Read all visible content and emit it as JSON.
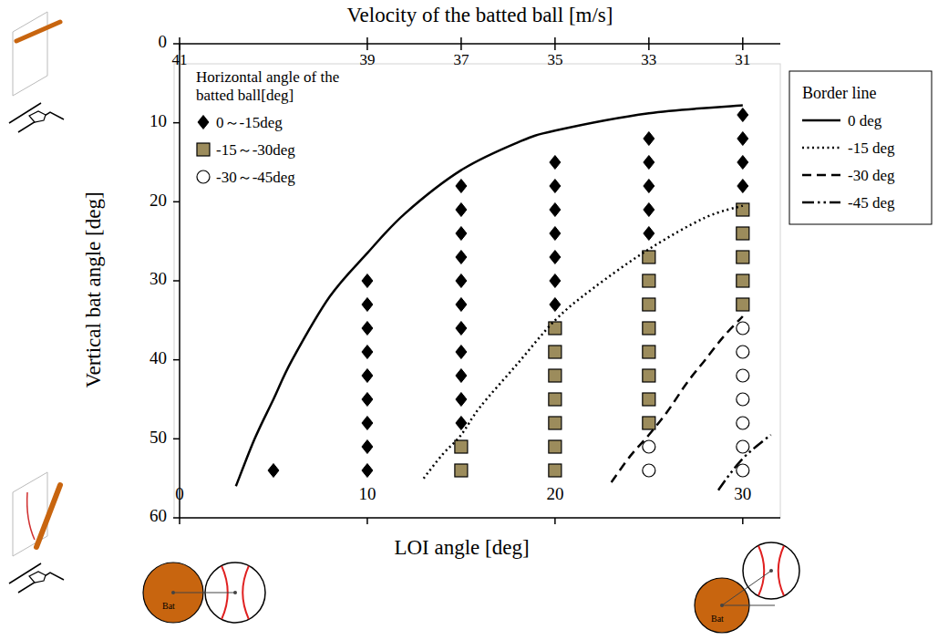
{
  "chart_data": {
    "type": "scatter",
    "x_label": "LOI angle [deg]",
    "x2_label": "Velocity of the batted ball [m/s]",
    "y_label": "Vertical bat angle [deg]",
    "xlim": [
      0,
      32
    ],
    "xticks": [
      0,
      10,
      20,
      30
    ],
    "ylim": [
      60,
      0
    ],
    "yticks": [
      0,
      10,
      20,
      30,
      40,
      50,
      60
    ],
    "x2ticks": [
      41,
      39,
      37,
      35,
      33,
      31
    ],
    "x2ticks_at_x": [
      0,
      10,
      15,
      20,
      25,
      30
    ],
    "grid": false,
    "legend": "upper-left",
    "legend_title": "Horizontal angle of the batted ball[deg]",
    "line_legend_title": "Border line",
    "bat_label": "Bat",
    "series": [
      {
        "name": "0～-15deg",
        "type": "scatter",
        "marker": "diamond",
        "color": "#000000",
        "x": [
          5,
          10,
          10,
          10,
          10,
          10,
          10,
          10,
          10,
          10,
          15,
          15,
          15,
          15,
          15,
          15,
          15,
          15,
          15,
          15,
          15,
          20,
          20,
          20,
          20,
          20,
          20,
          20,
          25,
          25,
          25,
          25,
          25,
          30,
          30,
          30,
          30
        ],
        "values": [
          54,
          30,
          33,
          36,
          39,
          42,
          45,
          48,
          51,
          54,
          18,
          21,
          24,
          27,
          30,
          33,
          36,
          39,
          42,
          45,
          48,
          15,
          18,
          21,
          24,
          27,
          30,
          33,
          12,
          15,
          18,
          21,
          24,
          9,
          12,
          15,
          18
        ]
      },
      {
        "name": "-15～-30deg",
        "type": "scatter",
        "marker": "square",
        "color": "#9c8c5c",
        "x": [
          15,
          15,
          20,
          20,
          20,
          20,
          20,
          20,
          20,
          25,
          25,
          25,
          25,
          25,
          25,
          25,
          25,
          30,
          30,
          30,
          30,
          30
        ],
        "values": [
          51,
          54,
          36,
          39,
          42,
          45,
          48,
          51,
          54,
          27,
          30,
          33,
          36,
          39,
          42,
          45,
          48,
          21,
          24,
          27,
          30,
          33
        ]
      },
      {
        "name": "-30～-45deg",
        "type": "scatter",
        "marker": "circle",
        "color": "#ffffff",
        "x": [
          25,
          25,
          30,
          30,
          30,
          30,
          30,
          30,
          30
        ],
        "values": [
          51,
          54,
          36,
          39,
          42,
          45,
          48,
          51,
          54
        ]
      },
      {
        "name": "0 deg",
        "type": "line",
        "line_style": "solid",
        "color": "#000000",
        "x": [
          3,
          4,
          5,
          6,
          8,
          10,
          12,
          15,
          18,
          20,
          25,
          30
        ],
        "values": [
          56,
          50,
          45,
          40,
          32,
          26.5,
          21.5,
          16,
          12.5,
          11,
          8.8,
          7.8
        ]
      },
      {
        "name": "-15 deg",
        "type": "line",
        "line_style": "dotted",
        "color": "#000000",
        "x": [
          13,
          14,
          15,
          16,
          18,
          20,
          22,
          25,
          28,
          30
        ],
        "values": [
          55,
          52,
          49.5,
          46,
          40.5,
          35,
          31,
          26,
          22,
          20.5
        ]
      },
      {
        "name": "-30 deg",
        "type": "line",
        "line_style": "dashed",
        "color": "#000000",
        "x": [
          23,
          24,
          25,
          26,
          27,
          28,
          29,
          30
        ],
        "values": [
          55.5,
          52.2,
          49.5,
          46.5,
          43,
          40,
          37,
          34.5
        ]
      },
      {
        "name": "-45 deg",
        "type": "line",
        "line_style": "dashdot",
        "color": "#000000",
        "x": [
          28.7,
          29.3,
          30,
          30.7,
          31.5
        ],
        "values": [
          56.5,
          54.5,
          52.5,
          51,
          49.5
        ]
      }
    ]
  }
}
